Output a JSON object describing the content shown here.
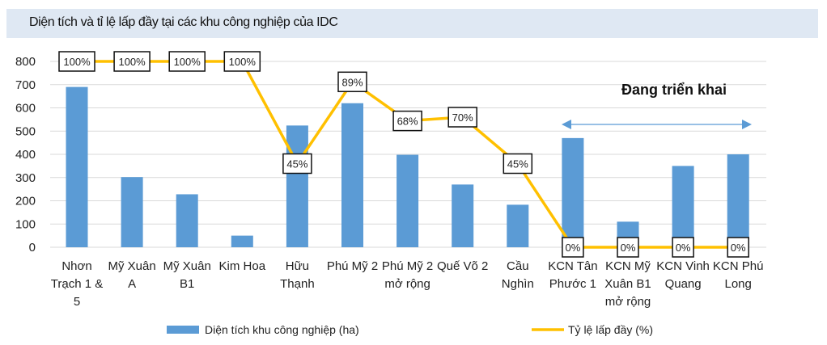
{
  "chart_data": {
    "type": "bar+line",
    "title": "Diện tích và tỉ lệ lấp đầy tại các khu công nghiệp của IDC",
    "categories": [
      [
        "Nhơn",
        "Trạch 1 &",
        "5"
      ],
      [
        "Mỹ Xuân",
        "A"
      ],
      [
        "Mỹ Xuân",
        "B1"
      ],
      [
        "Kim Hoa"
      ],
      [
        "Hữu",
        "Thạnh"
      ],
      [
        "Phú Mỹ 2"
      ],
      [
        "Phú Mỹ 2",
        "mở rộng"
      ],
      [
        "Quế Võ 2"
      ],
      [
        "Cầu",
        "Nghìn"
      ],
      [
        "KCN Tân",
        "Phước 1"
      ],
      [
        "KCN Mỹ",
        "Xuân B1",
        "mở rộng"
      ],
      [
        "KCN Vinh",
        "Quang"
      ],
      [
        "KCN Phú",
        "Long"
      ]
    ],
    "ylim": [
      0,
      800
    ],
    "yticks": [
      "0",
      "100",
      "200",
      "300",
      "400",
      "500",
      "600",
      "700",
      "800"
    ],
    "grid": true,
    "legend_position": "bottom",
    "series": [
      {
        "name": "Diện tích khu công nghiệp (ha)",
        "type": "bar",
        "color": "#5b9bd5",
        "values": [
          690,
          302,
          228,
          50,
          524,
          620,
          398,
          270,
          183,
          470,
          110,
          350,
          400
        ]
      },
      {
        "name": "Tỷ lệ lấp đầy (%)",
        "type": "line",
        "color": "#ffc000",
        "values": [
          100,
          100,
          100,
          100,
          45,
          89,
          68,
          70,
          45,
          0,
          0,
          0,
          0
        ],
        "labels": [
          "100%",
          "100%",
          "100%",
          "100%",
          "45%",
          "89%",
          "68%",
          "70%",
          "45%",
          "0%",
          "0%",
          "0%",
          "0%"
        ]
      }
    ],
    "annotation": {
      "text": "Đang triển khai",
      "arrow_color": "#5b9bd5"
    }
  }
}
